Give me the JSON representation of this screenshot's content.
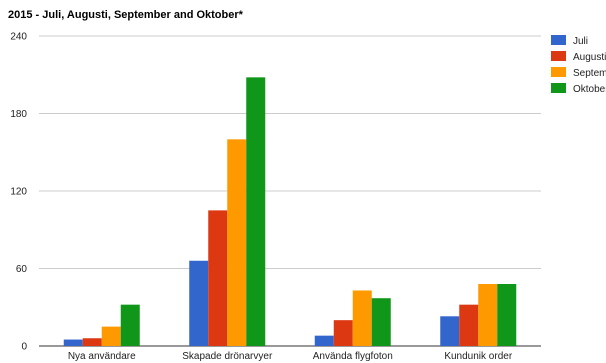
{
  "chart_data": {
    "type": "bar",
    "title": "2015 - Juli, Augusti, September and Oktober*",
    "xlabel": "",
    "ylabel": "",
    "ylim": [
      0,
      240
    ],
    "yticks": [
      0,
      60,
      120,
      180,
      240
    ],
    "grid": true,
    "legend_position": "right",
    "categories": [
      "Nya användare",
      "Skapade drönarvyer",
      "Använda flygfoton",
      "Kundunik order"
    ],
    "series": [
      {
        "name": "Juli",
        "color": "#3366cc",
        "values": [
          5,
          66,
          8,
          23
        ]
      },
      {
        "name": "Augusti",
        "color": "#dc3912",
        "values": [
          6,
          105,
          20,
          32
        ]
      },
      {
        "name": "September",
        "color": "#ff9900",
        "values": [
          15,
          160,
          43,
          48
        ]
      },
      {
        "name": "Oktober",
        "color": "#109618",
        "values": [
          32,
          208,
          37,
          48
        ]
      }
    ]
  }
}
